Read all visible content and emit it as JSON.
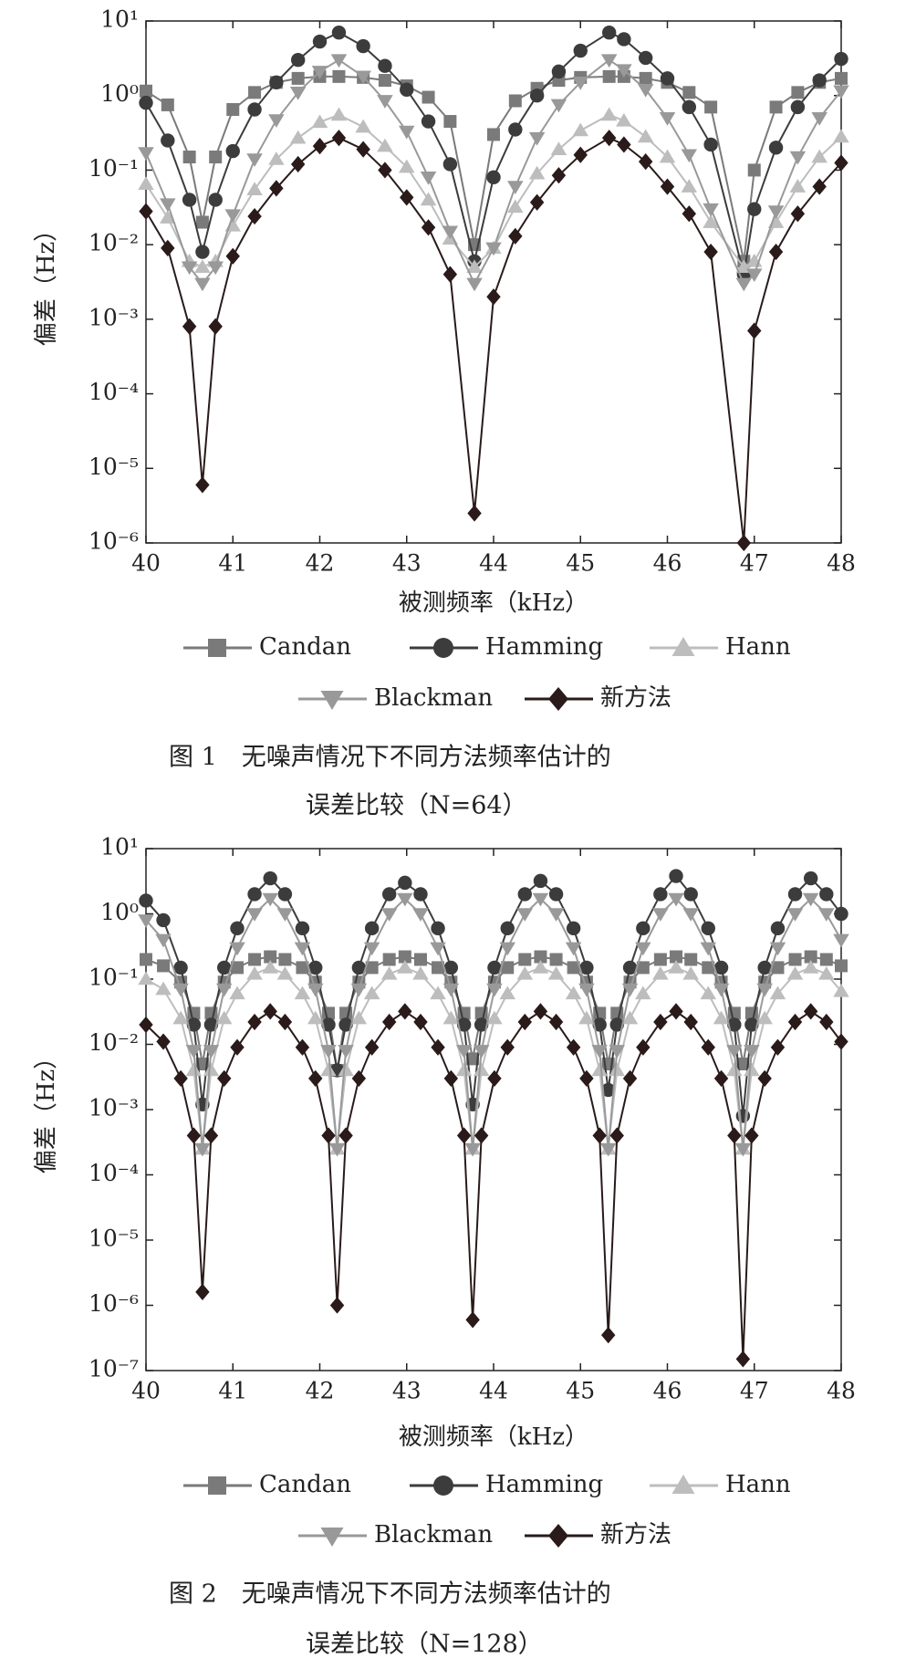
{
  "chart_data": [
    {
      "type": "line",
      "y_label": "偏差（Hz）",
      "x_label": "被测频率（kHz）",
      "caption": [
        "图 1　无噪声情况下不同方法频率估计的",
        "误差比较（N=64）"
      ],
      "log_y": true,
      "xlim": [
        40,
        48
      ],
      "ylim": [
        1e-06,
        10
      ],
      "xticks": [
        40,
        41,
        42,
        43,
        44,
        45,
        46,
        47,
        48
      ],
      "yticks": [
        {
          "value": 1e-06,
          "label": "10⁻⁶"
        },
        {
          "value": 1e-05,
          "label": "10⁻⁵"
        },
        {
          "value": 0.0001,
          "label": "10⁻⁴"
        },
        {
          "value": 0.001,
          "label": "10⁻³"
        },
        {
          "value": 0.01,
          "label": "10⁻²"
        },
        {
          "value": 0.1,
          "label": "10⁻¹"
        },
        {
          "value": 1,
          "label": "10⁰"
        },
        {
          "value": 10,
          "label": "10¹"
        }
      ],
      "x": [
        40,
        40.25,
        40.5,
        40.65,
        40.8,
        41,
        41.25,
        41.5,
        41.75,
        42,
        42.22,
        42.5,
        42.75,
        43,
        43.25,
        43.5,
        43.78,
        44,
        44.25,
        44.5,
        44.75,
        45,
        45.33,
        45.5,
        45.75,
        46,
        46.25,
        46.5,
        46.88,
        47,
        47.25,
        47.5,
        47.75,
        48
      ],
      "series": [
        {
          "name": "Candan",
          "color": "#7a7a7a",
          "marker": "square",
          "values": [
            1.15,
            0.75,
            0.15,
            0.02,
            0.15,
            0.65,
            1.1,
            1.5,
            1.7,
            1.8,
            1.8,
            1.75,
            1.6,
            1.35,
            0.95,
            0.45,
            0.01,
            0.3,
            0.85,
            1.25,
            1.6,
            1.75,
            1.8,
            1.8,
            1.7,
            1.5,
            1.1,
            0.7,
            0.006,
            0.1,
            0.7,
            1.1,
            1.5,
            1.7
          ]
        },
        {
          "name": "Hamming",
          "color": "#3c3c3c",
          "marker": "circle",
          "values": [
            0.8,
            0.25,
            0.04,
            0.008,
            0.04,
            0.18,
            0.65,
            1.5,
            3,
            5.3,
            7,
            4.6,
            2.5,
            1.2,
            0.45,
            0.12,
            0.006,
            0.08,
            0.35,
            1,
            2.1,
            4,
            7,
            5.7,
            3.2,
            1.7,
            0.7,
            0.22,
            0.004,
            0.03,
            0.2,
            0.7,
            1.6,
            3.1
          ]
        },
        {
          "name": "Hann",
          "color": "#bdbdbd",
          "marker": "triangle-up",
          "values": [
            0.065,
            0.023,
            0.006,
            0.005,
            0.006,
            0.018,
            0.055,
            0.14,
            0.27,
            0.44,
            0.55,
            0.38,
            0.21,
            0.11,
            0.04,
            0.012,
            0.005,
            0.009,
            0.032,
            0.09,
            0.19,
            0.34,
            0.55,
            0.46,
            0.28,
            0.15,
            0.06,
            0.02,
            0.005,
            0.006,
            0.02,
            0.06,
            0.15,
            0.28
          ]
        },
        {
          "name": "Blackman",
          "color": "#999999",
          "marker": "triangle-down",
          "values": [
            0.17,
            0.035,
            0.005,
            0.003,
            0.005,
            0.025,
            0.14,
            0.47,
            1.1,
            2.1,
            3,
            1.8,
            0.85,
            0.33,
            0.08,
            0.015,
            0.003,
            0.009,
            0.06,
            0.27,
            0.75,
            1.5,
            3,
            2.2,
            1.2,
            0.5,
            0.16,
            0.03,
            0.003,
            0.004,
            0.028,
            0.15,
            0.5,
            1.15
          ]
        },
        {
          "name": "新方法",
          "color": "#2a1a1a",
          "marker": "diamond",
          "values": [
            0.028,
            0.009,
            0.0008,
            6e-06,
            0.0008,
            0.007,
            0.024,
            0.057,
            0.12,
            0.21,
            0.27,
            0.19,
            0.1,
            0.043,
            0.017,
            0.004,
            2.5e-06,
            0.002,
            0.013,
            0.037,
            0.085,
            0.16,
            0.27,
            0.22,
            0.13,
            0.06,
            0.026,
            0.008,
            1e-06,
            0.0007,
            0.008,
            0.026,
            0.06,
            0.125
          ]
        }
      ]
    },
    {
      "type": "line",
      "y_label": "偏差（Hz）",
      "x_label": "被测频率（kHz）",
      "caption": [
        "图 2　无噪声情况下不同方法频率估计的",
        "误差比较（N=128）"
      ],
      "log_y": true,
      "xlim": [
        40,
        48
      ],
      "ylim": [
        1e-07,
        10
      ],
      "xticks": [
        40,
        41,
        42,
        43,
        44,
        45,
        46,
        47,
        48
      ],
      "yticks": [
        {
          "value": 1e-07,
          "label": "10⁻⁷"
        },
        {
          "value": 1e-06,
          "label": "10⁻⁶"
        },
        {
          "value": 1e-05,
          "label": "10⁻⁵"
        },
        {
          "value": 0.0001,
          "label": "10⁻⁴"
        },
        {
          "value": 0.001,
          "label": "10⁻³"
        },
        {
          "value": 0.01,
          "label": "10⁻²"
        },
        {
          "value": 0.1,
          "label": "10⁻¹"
        },
        {
          "value": 1,
          "label": "10⁰"
        },
        {
          "value": 10,
          "label": "10¹"
        }
      ],
      "x": [
        40,
        40.2,
        40.4,
        40.55,
        40.65,
        40.75,
        40.9,
        41.05,
        41.25,
        41.43,
        41.6,
        41.8,
        41.95,
        42.1,
        42.2,
        42.3,
        42.45,
        42.6,
        42.8,
        42.98,
        43.16,
        43.36,
        43.51,
        43.66,
        43.76,
        43.86,
        44.01,
        44.16,
        44.36,
        44.54,
        44.72,
        44.92,
        45.07,
        45.22,
        45.32,
        45.42,
        45.57,
        45.72,
        45.92,
        46.1,
        46.27,
        46.47,
        46.62,
        46.77,
        46.87,
        46.97,
        47.12,
        47.27,
        47.47,
        47.65,
        47.83,
        48
      ],
      "series": [
        {
          "name": "Candan",
          "color": "#7a7a7a",
          "marker": "square",
          "values": [
            0.2,
            0.16,
            0.09,
            0.03,
            0.005,
            0.03,
            0.09,
            0.15,
            0.2,
            0.22,
            0.2,
            0.15,
            0.09,
            0.03,
            0.004,
            0.03,
            0.09,
            0.15,
            0.2,
            0.22,
            0.2,
            0.15,
            0.09,
            0.03,
            0.006,
            0.03,
            0.09,
            0.15,
            0.2,
            0.22,
            0.2,
            0.15,
            0.09,
            0.03,
            0.005,
            0.03,
            0.09,
            0.15,
            0.2,
            0.22,
            0.2,
            0.15,
            0.09,
            0.03,
            0.005,
            0.03,
            0.09,
            0.15,
            0.2,
            0.22,
            0.2,
            0.16
          ]
        },
        {
          "name": "Hamming",
          "color": "#3c3c3c",
          "marker": "circle",
          "values": [
            1.6,
            0.8,
            0.15,
            0.02,
            0.0012,
            0.02,
            0.15,
            0.6,
            2,
            3.5,
            2,
            0.6,
            0.15,
            0.02,
            0.004,
            0.02,
            0.15,
            0.6,
            2,
            3,
            2,
            0.6,
            0.15,
            0.02,
            0.0012,
            0.02,
            0.15,
            0.6,
            2,
            3.2,
            2,
            0.6,
            0.15,
            0.02,
            0.002,
            0.02,
            0.15,
            0.6,
            2,
            3.8,
            2,
            0.6,
            0.15,
            0.02,
            0.0008,
            0.02,
            0.15,
            0.6,
            2,
            3.5,
            2,
            1
          ]
        },
        {
          "name": "Hann",
          "color": "#bdbdbd",
          "marker": "triangle-up",
          "values": [
            0.1,
            0.07,
            0.025,
            0.004,
            0.00025,
            0.004,
            0.025,
            0.06,
            0.12,
            0.15,
            0.12,
            0.06,
            0.025,
            0.004,
            0.00025,
            0.004,
            0.025,
            0.06,
            0.12,
            0.15,
            0.12,
            0.06,
            0.025,
            0.004,
            0.00025,
            0.004,
            0.025,
            0.06,
            0.12,
            0.15,
            0.12,
            0.06,
            0.025,
            0.004,
            0.00025,
            0.004,
            0.025,
            0.06,
            0.12,
            0.15,
            0.12,
            0.06,
            0.025,
            0.004,
            0.00025,
            0.004,
            0.025,
            0.06,
            0.12,
            0.15,
            0.12,
            0.065
          ]
        },
        {
          "name": "Blackman",
          "color": "#999999",
          "marker": "triangle-down",
          "values": [
            0.8,
            0.4,
            0.07,
            0.008,
            0.00025,
            0.008,
            0.07,
            0.3,
            1,
            1.7,
            1,
            0.3,
            0.07,
            0.008,
            0.00025,
            0.008,
            0.07,
            0.3,
            1,
            1.7,
            1,
            0.3,
            0.07,
            0.008,
            0.00025,
            0.008,
            0.07,
            0.3,
            1,
            1.7,
            1,
            0.3,
            0.07,
            0.008,
            0.00025,
            0.008,
            0.07,
            0.3,
            1,
            1.7,
            1,
            0.3,
            0.07,
            0.008,
            0.00025,
            0.008,
            0.07,
            0.3,
            1,
            1.7,
            1,
            0.4
          ]
        },
        {
          "name": "新方法",
          "color": "#2a1a1a",
          "marker": "diamond",
          "values": [
            0.02,
            0.011,
            0.003,
            0.0004,
            1.6e-06,
            0.0004,
            0.003,
            0.009,
            0.022,
            0.032,
            0.022,
            0.009,
            0.003,
            0.0004,
            1e-06,
            0.0004,
            0.003,
            0.009,
            0.022,
            0.032,
            0.022,
            0.009,
            0.003,
            0.0004,
            6e-07,
            0.0004,
            0.003,
            0.009,
            0.022,
            0.032,
            0.022,
            0.009,
            0.003,
            0.0004,
            3.5e-07,
            0.0004,
            0.003,
            0.009,
            0.022,
            0.032,
            0.022,
            0.009,
            0.003,
            0.0004,
            1.5e-07,
            0.0004,
            0.003,
            0.009,
            0.022,
            0.032,
            0.022,
            0.011
          ]
        }
      ]
    }
  ]
}
